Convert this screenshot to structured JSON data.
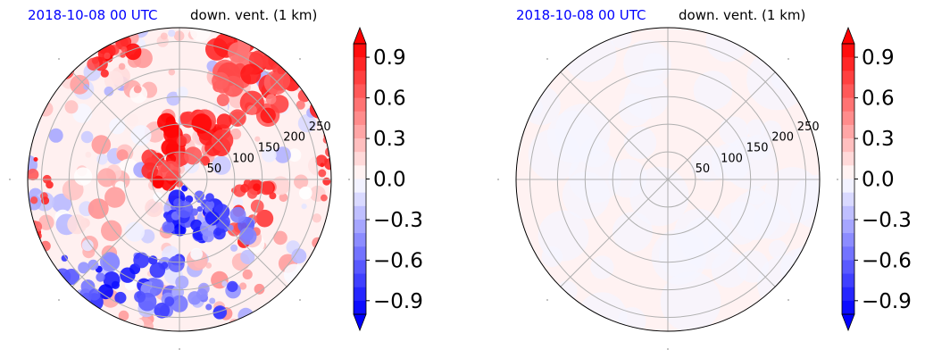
{
  "chart_data": [
    {
      "type": "heatmap",
      "projection": "polar",
      "title_left": "2018-10-08 00 UTC",
      "title_right": "down. vent. (1 km)",
      "title_left_color": "#0000ff",
      "radial_ticks": [
        50,
        100,
        150,
        200,
        250
      ],
      "r_max": 275,
      "field": "mixed",
      "colorbar": {
        "ticks": [
          "0.9",
          "0.6",
          "0.3",
          "0.0",
          "−0.3",
          "−0.6",
          "−0.9"
        ],
        "tick_values": [
          0.9,
          0.6,
          0.3,
          0.0,
          -0.3,
          -0.6,
          -0.9
        ],
        "range": [
          -1.0,
          1.0
        ],
        "levels": 20,
        "extend": "both",
        "colormap": "bwr"
      }
    },
    {
      "type": "heatmap",
      "projection": "polar",
      "title_left": "2018-10-08 00 UTC",
      "title_right": "down. vent. (1 km)",
      "title_left_color": "#0000ff",
      "radial_ticks": [
        50,
        100,
        150,
        200,
        250
      ],
      "r_max": 275,
      "field": "near-zero",
      "colorbar": {
        "ticks": [
          "0.9",
          "0.6",
          "0.3",
          "0.0",
          "−0.3",
          "−0.6",
          "−0.9"
        ],
        "tick_values": [
          0.9,
          0.6,
          0.3,
          0.0,
          -0.3,
          -0.6,
          -0.9
        ],
        "range": [
          -1.0,
          1.0
        ],
        "levels": 20,
        "extend": "both",
        "colormap": "bwr"
      }
    }
  ]
}
